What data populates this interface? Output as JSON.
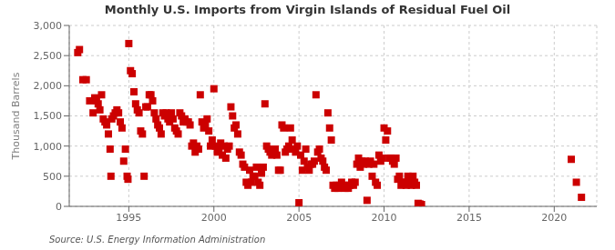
{
  "chart_data": {
    "type": "scatter",
    "title": "Monthly U.S. Imports from Virgin Islands of Residual Fuel Oil",
    "ylabel": "Thousand Barrels",
    "source": "Source: U.S. Energy Information Administration",
    "color": "#cc0000",
    "marker": "square",
    "grid": true,
    "xlim": [
      1991.5,
      2022.5
    ],
    "xticks": [
      1995,
      2000,
      2005,
      2010,
      2015,
      2020
    ],
    "ylim": [
      0,
      3000
    ],
    "yticks": [
      0,
      500,
      {
        "value": 1000,
        "label": "1,000"
      },
      {
        "value": 1500,
        "label": "1,500"
      },
      {
        "value": 2000,
        "label": "2,000"
      },
      {
        "value": 2500,
        "label": "2,500"
      },
      {
        "value": 3000,
        "label": "3,000"
      }
    ],
    "x": [
      1992.0,
      1992.1,
      1992.3,
      1992.5,
      1992.7,
      1992.9,
      1993.0,
      1993.1,
      1993.2,
      1993.3,
      1993.4,
      1993.5,
      1993.6,
      1993.7,
      1993.8,
      1993.9,
      1993.95,
      1994.0,
      1994.1,
      1994.2,
      1994.3,
      1994.4,
      1994.5,
      1994.6,
      1994.7,
      1994.8,
      1994.9,
      1994.95,
      1995.0,
      1995.1,
      1995.2,
      1995.3,
      1995.4,
      1995.5,
      1995.6,
      1995.7,
      1995.8,
      1995.9,
      1996.0,
      1996.1,
      1996.2,
      1996.3,
      1996.4,
      1996.5,
      1996.6,
      1996.7,
      1996.8,
      1996.9,
      1997.0,
      1997.1,
      1997.2,
      1997.3,
      1997.4,
      1997.5,
      1997.6,
      1997.7,
      1997.8,
      1997.9,
      1998.0,
      1998.1,
      1998.2,
      1998.3,
      1998.4,
      1998.5,
      1998.6,
      1998.7,
      1998.8,
      1998.9,
      1999.0,
      1999.1,
      1999.2,
      1999.3,
      1999.4,
      1999.5,
      1999.6,
      1999.7,
      1999.8,
      1999.9,
      2000.0,
      2000.1,
      2000.2,
      2000.3,
      2000.4,
      2000.5,
      2000.6,
      2000.7,
      2000.8,
      2000.9,
      2001.0,
      2001.1,
      2001.2,
      2001.3,
      2001.4,
      2001.5,
      2001.6,
      2001.7,
      2001.8,
      2001.9,
      2002.0,
      2002.1,
      2002.2,
      2002.3,
      2002.4,
      2002.5,
      2002.6,
      2002.7,
      2002.8,
      2002.9,
      2003.0,
      2003.1,
      2003.2,
      2003.3,
      2003.4,
      2003.5,
      2003.6,
      2003.7,
      2003.8,
      2003.9,
      2004.0,
      2004.1,
      2004.2,
      2004.3,
      2004.4,
      2004.5,
      2004.6,
      2004.7,
      2004.8,
      2004.9,
      2005.0,
      2005.1,
      2005.2,
      2005.3,
      2005.4,
      2005.5,
      2005.6,
      2005.7,
      2005.8,
      2005.9,
      2006.0,
      2006.1,
      2006.2,
      2006.3,
      2006.4,
      2006.5,
      2006.6,
      2006.7,
      2006.8,
      2006.9,
      2007.0,
      2007.1,
      2007.2,
      2007.3,
      2007.4,
      2007.5,
      2007.6,
      2007.7,
      2007.8,
      2007.9,
      2008.0,
      2008.1,
      2008.2,
      2008.3,
      2008.4,
      2008.5,
      2008.6,
      2008.7,
      2008.8,
      2008.9,
      2009.0,
      2009.1,
      2009.2,
      2009.3,
      2009.4,
      2009.5,
      2009.6,
      2009.7,
      2009.8,
      2009.9,
      2010.0,
      2010.1,
      2010.2,
      2010.3,
      2010.4,
      2010.5,
      2010.6,
      2010.7,
      2010.8,
      2010.9,
      2011.0,
      2011.1,
      2011.2,
      2011.3,
      2011.4,
      2011.5,
      2011.6,
      2011.7,
      2011.8,
      2011.9,
      2012.0,
      2012.1,
      2012.2,
      2021.0,
      2021.3,
      2021.6
    ],
    "values": [
      2550,
      2600,
      2100,
      2100,
      1750,
      1550,
      1800,
      1750,
      1700,
      1600,
      1850,
      1450,
      1400,
      1350,
      1200,
      950,
      500,
      1450,
      1500,
      1550,
      1600,
      1550,
      1400,
      1300,
      750,
      950,
      500,
      450,
      2700,
      2250,
      2200,
      1900,
      1700,
      1600,
      1550,
      1250,
      1200,
      500,
      1650,
      1650,
      1850,
      1850,
      1750,
      1550,
      1450,
      1350,
      1300,
      1200,
      1550,
      1500,
      1550,
      1450,
      1400,
      1550,
      1450,
      1300,
      1250,
      1200,
      1550,
      1500,
      1400,
      1450,
      1400,
      1400,
      1350,
      1000,
      1050,
      900,
      1000,
      950,
      1850,
      1400,
      1300,
      1350,
      1450,
      1250,
      1000,
      1100,
      1950,
      1000,
      900,
      950,
      1050,
      850,
      1000,
      800,
      950,
      1000,
      1650,
      1500,
      1300,
      1350,
      1200,
      900,
      850,
      700,
      650,
      400,
      350,
      600,
      400,
      500,
      500,
      650,
      400,
      350,
      550,
      650,
      1700,
      1000,
      950,
      900,
      850,
      900,
      950,
      850,
      600,
      600,
      1350,
      1300,
      900,
      950,
      1000,
      1300,
      1100,
      950,
      900,
      1000,
      60,
      850,
      600,
      750,
      950,
      650,
      600,
      700,
      700,
      750,
      1850,
      900,
      950,
      800,
      750,
      650,
      600,
      1550,
      1300,
      1100,
      350,
      300,
      350,
      300,
      350,
      400,
      350,
      300,
      350,
      300,
      350,
      400,
      350,
      400,
      700,
      800,
      650,
      750,
      700,
      750,
      100,
      700,
      750,
      500,
      700,
      400,
      350,
      850,
      750,
      800,
      1300,
      1100,
      1250,
      800,
      800,
      750,
      700,
      800,
      450,
      500,
      350,
      400,
      400,
      350,
      500,
      450,
      350,
      500,
      400,
      350,
      50,
      40,
      30,
      780,
      400,
      150
    ]
  }
}
